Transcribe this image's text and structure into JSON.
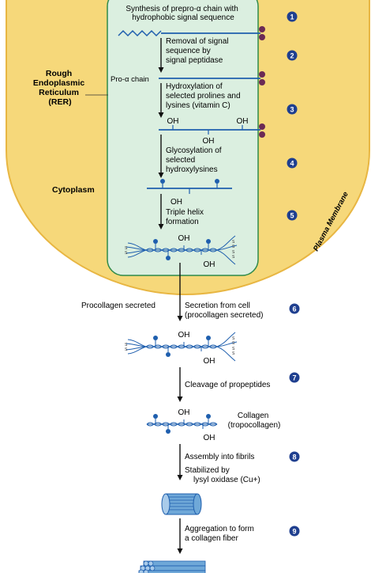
{
  "colors": {
    "cytoplasm": "#f6d87a",
    "er_fill": "#dbefe0",
    "er_border": "#2e8a4a",
    "chain": "#1f5fae",
    "bead": "#6b2a55",
    "badge": "#1f3f8f"
  },
  "regions": {
    "rer_label": [
      "Rough",
      "Endoplasmic",
      "Reticulum",
      "(RER)"
    ],
    "cytoplasm_label": "Cytoplasm",
    "membrane_label": "Plasma Membrane"
  },
  "labels": {
    "pro_alpha_chain": "Pro-α chain",
    "oh": "OH",
    "ss": "S",
    "procollagen_secreted": "Procollagen secreted",
    "collagen": [
      "Collagen",
      "(tropocollagen)"
    ]
  },
  "steps": [
    {
      "number": "1",
      "lines": [
        "Synthesis of prepro-α chain with",
        "hydrophobic signal sequence"
      ]
    },
    {
      "number": "2",
      "lines": [
        "Removal of signal",
        "sequence by",
        "signal peptidase"
      ]
    },
    {
      "number": "3",
      "lines": [
        "Hydroxylation of",
        "selected prolines and",
        "lysines (vitamin C)"
      ]
    },
    {
      "number": "4",
      "lines": [
        "Glycosylation of",
        "selected",
        "hydroxylysines"
      ]
    },
    {
      "number": "5",
      "lines": [
        "Triple helix",
        "formation"
      ]
    },
    {
      "number": "6",
      "lines": [
        "Secretion from cell",
        "(procollagen secreted)"
      ]
    },
    {
      "number": "7",
      "lines": [
        "Cleavage of propeptides"
      ]
    },
    {
      "number": "8",
      "lines": [
        "Assembly into fibrils",
        "Stabilized by",
        "lysyl oxidase (Cu+)"
      ]
    },
    {
      "number": "9",
      "lines": [
        "Aggregation to form",
        "a collagen fiber"
      ]
    }
  ]
}
